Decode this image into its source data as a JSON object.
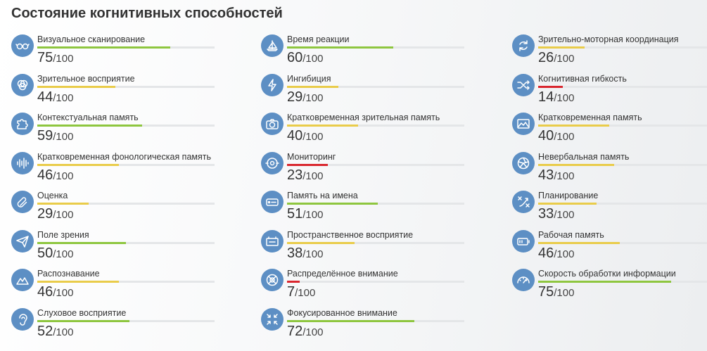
{
  "page": {
    "title": "Состояние когнитивных способностей",
    "max_label": "/100"
  },
  "colors": {
    "icon_bg": "#5d8fc4",
    "bar_track": "#e4e6e8",
    "high": "#8ec63f",
    "mid": "#e9cc4a",
    "low": "#d9262e"
  },
  "columns": [
    [
      {
        "name": "Визуальное сканирование",
        "value": 75,
        "icon": "glasses-icon"
      },
      {
        "name": "Зрительное восприятие",
        "value": 44,
        "icon": "overlapping-circles-icon"
      },
      {
        "name": "Контекстуальная память",
        "value": 59,
        "icon": "puzzle-icon"
      },
      {
        "name": "Кратковременная фонологическая память",
        "value": 46,
        "icon": "soundwave-icon"
      },
      {
        "name": "Оценка",
        "value": 29,
        "icon": "paperclip-icon"
      },
      {
        "name": "Поле зрения",
        "value": 50,
        "icon": "paper-plane-icon"
      },
      {
        "name": "Распознавание",
        "value": 46,
        "icon": "mountains-icon"
      },
      {
        "name": "Слуховое восприятие",
        "value": 52,
        "icon": "ear-icon"
      }
    ],
    [
      {
        "name": "Время реакции",
        "value": 60,
        "icon": "sailboat-icon"
      },
      {
        "name": "Ингибиция",
        "value": 29,
        "icon": "lightning-icon"
      },
      {
        "name": "Кратковременная зрительная память",
        "value": 40,
        "icon": "camera-icon"
      },
      {
        "name": "Мониторинг",
        "value": 23,
        "icon": "target-icon"
      },
      {
        "name": "Память на имена",
        "value": 51,
        "icon": "name-tag-icon"
      },
      {
        "name": "Пространственное восприятие",
        "value": 38,
        "icon": "battery-box-icon"
      },
      {
        "name": "Распределённое внимание",
        "value": 7,
        "icon": "crosshair-icon"
      },
      {
        "name": "Фокусированное внимание",
        "value": 72,
        "icon": "focus-arrows-icon"
      }
    ],
    [
      {
        "name": "Зрительно-моторная координация",
        "value": 26,
        "icon": "cycle-arrows-icon"
      },
      {
        "name": "Когнитивная гибкость",
        "value": 14,
        "icon": "shuffle-icon"
      },
      {
        "name": "Кратковременная память",
        "value": 40,
        "icon": "picture-icon"
      },
      {
        "name": "Невербальная память",
        "value": 43,
        "icon": "aperture-icon"
      },
      {
        "name": "Планирование",
        "value": 33,
        "icon": "strategy-icon"
      },
      {
        "name": "Рабочая память",
        "value": 46,
        "icon": "battery-icon"
      },
      {
        "name": "Скорость обработки информации",
        "value": 75,
        "icon": "speedometer-icon"
      }
    ]
  ]
}
